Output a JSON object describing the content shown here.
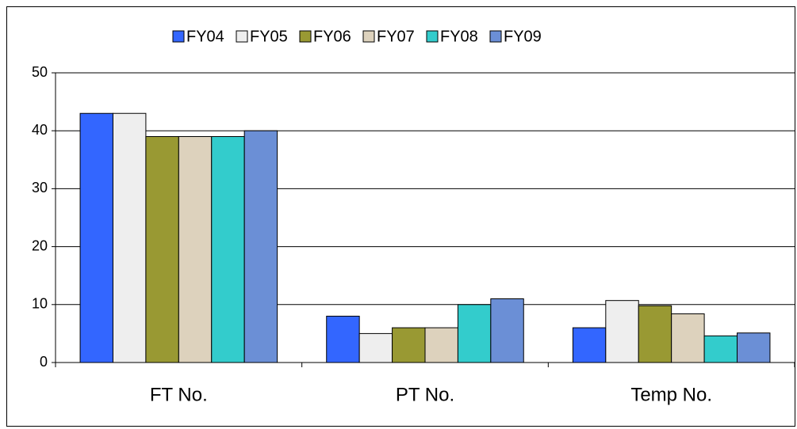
{
  "chart_data": {
    "type": "bar",
    "categories": [
      "FT No.",
      "PT No.",
      "Temp No."
    ],
    "series": [
      {
        "name": "FY04",
        "color": "#3366ff",
        "values": [
          43,
          8,
          6
        ]
      },
      {
        "name": "FY05",
        "color": "#eeeeee",
        "values": [
          43,
          5,
          10.7
        ]
      },
      {
        "name": "FY06",
        "color": "#999933",
        "values": [
          39,
          6,
          9.8
        ]
      },
      {
        "name": "FY07",
        "color": "#ddd2bd",
        "values": [
          39,
          6,
          8.4
        ]
      },
      {
        "name": "FY08",
        "color": "#33cccc",
        "values": [
          39,
          10,
          4.6
        ]
      },
      {
        "name": "FY09",
        "color": "#6b8fd6",
        "values": [
          40,
          11,
          5.1
        ]
      }
    ],
    "ylim": [
      0,
      50
    ],
    "yticks": [
      0,
      10,
      20,
      30,
      40,
      50
    ],
    "grid": true,
    "legend": "top"
  }
}
